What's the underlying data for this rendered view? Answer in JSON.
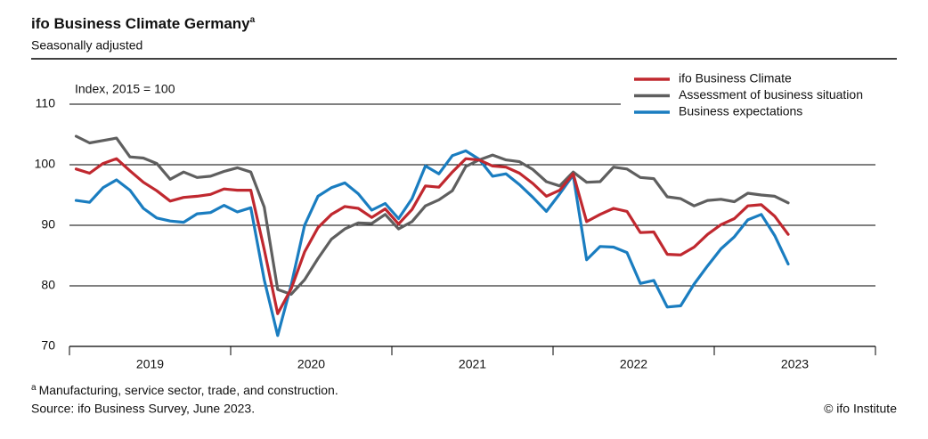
{
  "chart_data": {
    "type": "line",
    "title": "ifo Business Climate Germany",
    "title_note": "a",
    "subtitle": "Seasonally adjusted",
    "y_label": "Index, 2015 = 100",
    "year_labels": [
      "2019",
      "2020",
      "2021",
      "2022",
      "2023"
    ],
    "ylim": [
      70,
      110
    ],
    "yticks": [
      70,
      80,
      90,
      100,
      110
    ],
    "grid": true,
    "legend": "top-right",
    "series": [
      {
        "name": "ifo Business Climate",
        "color": "#c0282f",
        "values": [
          99.3,
          98.6,
          100.2,
          101.0,
          99.0,
          97.1,
          95.7,
          94.0,
          94.6,
          94.8,
          95.1,
          96.0,
          95.8,
          95.8,
          86.0,
          75.4,
          79.5,
          85.6,
          89.6,
          91.8,
          93.1,
          92.8,
          91.3,
          92.7,
          90.2,
          92.6,
          96.5,
          96.3,
          98.8,
          101.0,
          100.8,
          99.8,
          99.6,
          98.6,
          96.9,
          94.8,
          95.8,
          98.5,
          90.6,
          91.8,
          92.8,
          92.3,
          88.8,
          88.9,
          85.2,
          85.1,
          86.4,
          88.5,
          90.1,
          91.1,
          93.2,
          93.4,
          91.5,
          88.5
        ]
      },
      {
        "name": "Assessment of business situation",
        "color": "#5f5f5f",
        "values": [
          104.7,
          103.6,
          104.0,
          104.4,
          101.3,
          101.1,
          100.2,
          97.6,
          98.8,
          97.9,
          98.1,
          98.9,
          99.5,
          98.8,
          93.0,
          79.4,
          78.6,
          81.0,
          84.5,
          87.7,
          89.4,
          90.4,
          90.3,
          91.8,
          89.4,
          90.6,
          93.2,
          94.2,
          95.7,
          99.7,
          100.8,
          101.6,
          100.8,
          100.5,
          99.2,
          97.2,
          96.5,
          98.8,
          97.1,
          97.2,
          99.6,
          99.3,
          97.9,
          97.7,
          94.7,
          94.4,
          93.2,
          94.1,
          94.3,
          93.9,
          95.3,
          95.0,
          94.8,
          93.7
        ]
      },
      {
        "name": "Business expectations",
        "color": "#1a7dc0",
        "values": [
          94.1,
          93.8,
          96.2,
          97.5,
          95.8,
          92.8,
          91.2,
          90.7,
          90.5,
          91.9,
          92.1,
          93.3,
          92.2,
          92.9,
          81.0,
          71.8,
          80.1,
          90.0,
          94.8,
          96.2,
          97.0,
          95.2,
          92.5,
          93.6,
          91.1,
          94.4,
          99.8,
          98.5,
          101.5,
          102.3,
          100.9,
          98.1,
          98.5,
          96.7,
          94.6,
          92.3,
          95.2,
          98.3,
          84.3,
          86.5,
          86.4,
          85.5,
          80.4,
          80.9,
          76.5,
          76.7,
          80.3,
          83.3,
          86.1,
          88.1,
          90.9,
          91.8,
          88.3,
          83.6
        ]
      }
    ],
    "footnote": {
      "marker": "a",
      "text": "Manufacturing, service sector, trade, and construction."
    },
    "source": "Source: ifo Business Survey, June 2023.",
    "credit": "© ifo Institute"
  }
}
